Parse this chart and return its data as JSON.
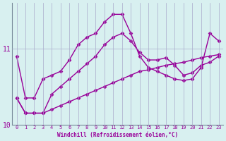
{
  "xlabel": "Windchill (Refroidissement éolien,°C)",
  "x": [
    0,
    1,
    2,
    3,
    4,
    5,
    6,
    7,
    8,
    9,
    10,
    11,
    12,
    13,
    14,
    15,
    16,
    17,
    18,
    19,
    20,
    21,
    22,
    23
  ],
  "line_bottom": [
    10.35,
    10.15,
    10.15,
    10.15,
    10.2,
    10.25,
    10.3,
    10.35,
    10.4,
    10.45,
    10.5,
    10.55,
    10.6,
    10.65,
    10.7,
    10.72,
    10.75,
    10.78,
    10.8,
    10.82,
    10.85,
    10.88,
    10.9,
    10.92
  ],
  "line_mid": [
    10.35,
    10.15,
    10.15,
    10.15,
    10.4,
    10.5,
    10.6,
    10.7,
    10.8,
    10.9,
    11.05,
    11.15,
    11.2,
    11.1,
    10.95,
    10.85,
    10.85,
    10.88,
    10.78,
    10.65,
    10.68,
    10.78,
    10.82,
    10.9
  ],
  "line_top": [
    10.9,
    10.35,
    10.35,
    10.6,
    10.65,
    10.7,
    10.85,
    11.05,
    11.15,
    11.2,
    11.35,
    11.45,
    11.45,
    11.2,
    10.9,
    10.75,
    10.7,
    10.65,
    10.6,
    10.58,
    10.6,
    10.75,
    11.2,
    11.1
  ],
  "line_color": "#990099",
  "bg_color": "#d8f0f0",
  "plot_bg": "#d8f0f0",
  "grid_color": "#aaaacc",
  "ylim": [
    10.0,
    11.6
  ],
  "xlim": [
    -0.5,
    23.5
  ],
  "yticks": [
    10,
    11
  ],
  "xticks": [
    0,
    1,
    2,
    3,
    4,
    5,
    6,
    7,
    8,
    9,
    10,
    11,
    12,
    13,
    14,
    15,
    16,
    17,
    18,
    19,
    20,
    21,
    22,
    23
  ],
  "marker": "D",
  "markersize": 2.5,
  "linewidth": 1.0
}
